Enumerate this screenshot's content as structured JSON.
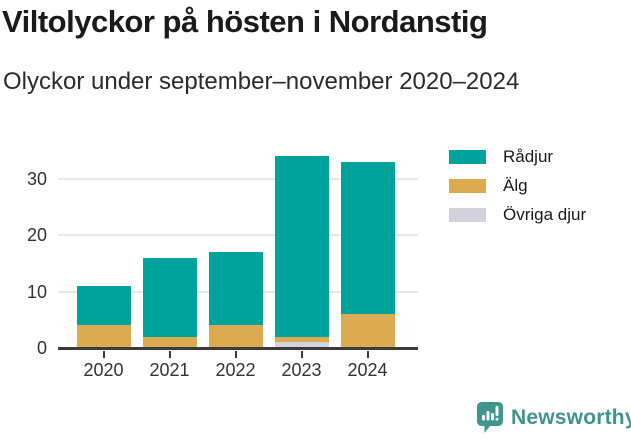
{
  "header": {
    "title": "Viltolyckor på hösten i Nordanstig",
    "subtitle": "Olyckor under september–november 2020–2024"
  },
  "chart_data": {
    "type": "bar",
    "stacked": true,
    "title": "Viltolyckor på hösten i Nordanstig",
    "subtitle": "Olyckor under september–november 2020–2024",
    "categories": [
      "2020",
      "2021",
      "2022",
      "2023",
      "2024"
    ],
    "series": [
      {
        "name": "Rådjur",
        "color": "#00a39b",
        "values": [
          7,
          14,
          13,
          32,
          27
        ]
      },
      {
        "name": "Älg",
        "color": "#dcaa50",
        "values": [
          4,
          2,
          4,
          1,
          6
        ]
      },
      {
        "name": "Övriga djur",
        "color": "#d3d1dc",
        "values": [
          0,
          0,
          0,
          1,
          0
        ]
      }
    ],
    "stack_order_bottom_to_top": [
      "Övriga djur",
      "Älg",
      "Rådjur"
    ],
    "totals": [
      11,
      16,
      17,
      34,
      33
    ],
    "yticks": [
      0,
      10,
      20,
      30
    ],
    "ylim": [
      0,
      36
    ],
    "xlabel": "",
    "ylabel": "",
    "grid": "horizontal",
    "grid_color": "#e7e7e7",
    "axis_color": "#3d3a37",
    "legend_position": "right"
  },
  "footer": {
    "brand": "Newsworthy",
    "brand_color": "#42938c",
    "brand_icon": "newsworthy-speech-bubble-chart-icon"
  }
}
